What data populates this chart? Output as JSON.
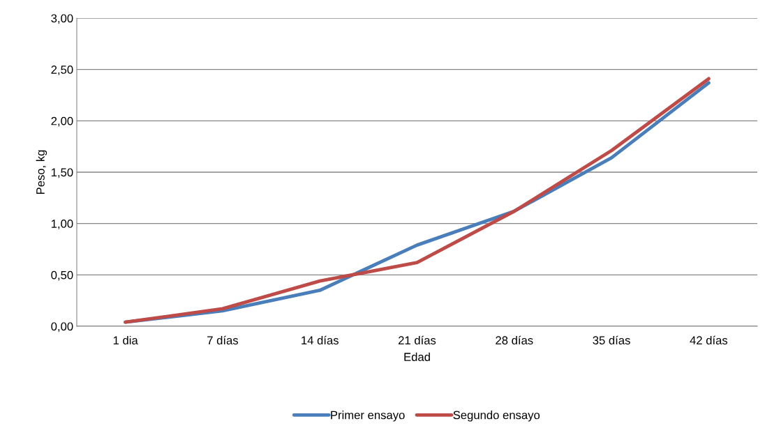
{
  "chart_data": {
    "type": "line",
    "xlabel": "Edad",
    "ylabel": "Peso, kg",
    "categories": [
      "1 dia",
      "7 días",
      "14 días",
      "21 días",
      "28 días",
      "35 días",
      "42 días"
    ],
    "series": [
      {
        "name": "Primer ensayo",
        "color": "#4a7ebb",
        "values": [
          0.04,
          0.15,
          0.35,
          0.79,
          1.12,
          1.64,
          2.37
        ]
      },
      {
        "name": "Segundo ensayo",
        "color": "#be4b48",
        "values": [
          0.04,
          0.17,
          0.44,
          0.62,
          1.12,
          1.71,
          2.41
        ]
      }
    ],
    "ylim": [
      0,
      3
    ],
    "yticks": [
      {
        "value": 0,
        "label": "0,00"
      },
      {
        "value": 0.5,
        "label": "0,50"
      },
      {
        "value": 1,
        "label": "1,00"
      },
      {
        "value": 1.5,
        "label": "1,50"
      },
      {
        "value": 2,
        "label": "2,00"
      },
      {
        "value": 2.5,
        "label": "2,50"
      },
      {
        "value": 3,
        "label": "3,00"
      }
    ],
    "grid": "y",
    "legend": "bottom",
    "marker": "none",
    "line_style": "solid"
  }
}
